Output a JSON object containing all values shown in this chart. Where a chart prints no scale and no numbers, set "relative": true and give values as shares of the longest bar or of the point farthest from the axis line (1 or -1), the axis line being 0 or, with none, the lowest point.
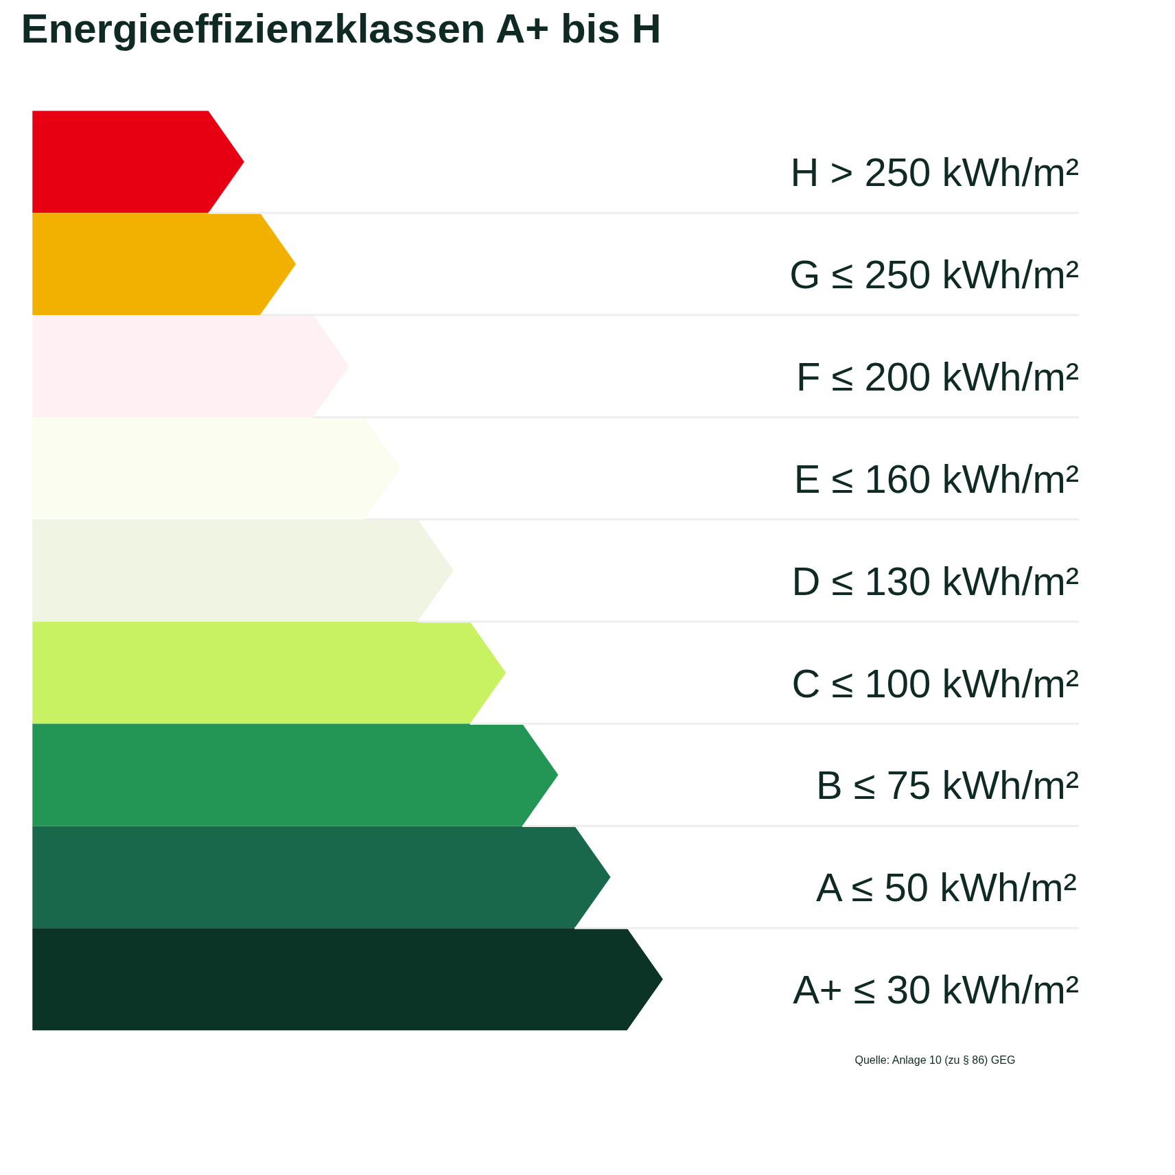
{
  "chart_data": {
    "type": "bar",
    "orientation": "horizontal",
    "relative": true,
    "title": "Energieeffizienzklassen A+ bis H",
    "categories": [
      "H > 250 kWh/m²",
      "G ≤ 250 kWh/m²",
      "F ≤ 200 kWh/m²",
      "E ≤ 160 kWh/m²",
      "D ≤ 130 kWh/m²",
      "C ≤ 100 kWh/m²",
      "B ≤ 75 kWh/m²",
      "A ≤ 50 kWh/m²",
      "A+ ≤ 30 kWh/m²"
    ],
    "values": [
      0.336,
      0.418,
      0.502,
      0.584,
      0.668,
      0.751,
      0.834,
      0.917,
      1.0
    ],
    "colors": [
      "#e60012",
      "#f2b000",
      "#fff0f3",
      "#fafdf0",
      "#f0f5e3",
      "#c9f263",
      "#239655",
      "#19684c",
      "#0b3427"
    ],
    "annotations": [
      "Quelle: Anlage 10 (zu § 86) GEG"
    ]
  }
}
